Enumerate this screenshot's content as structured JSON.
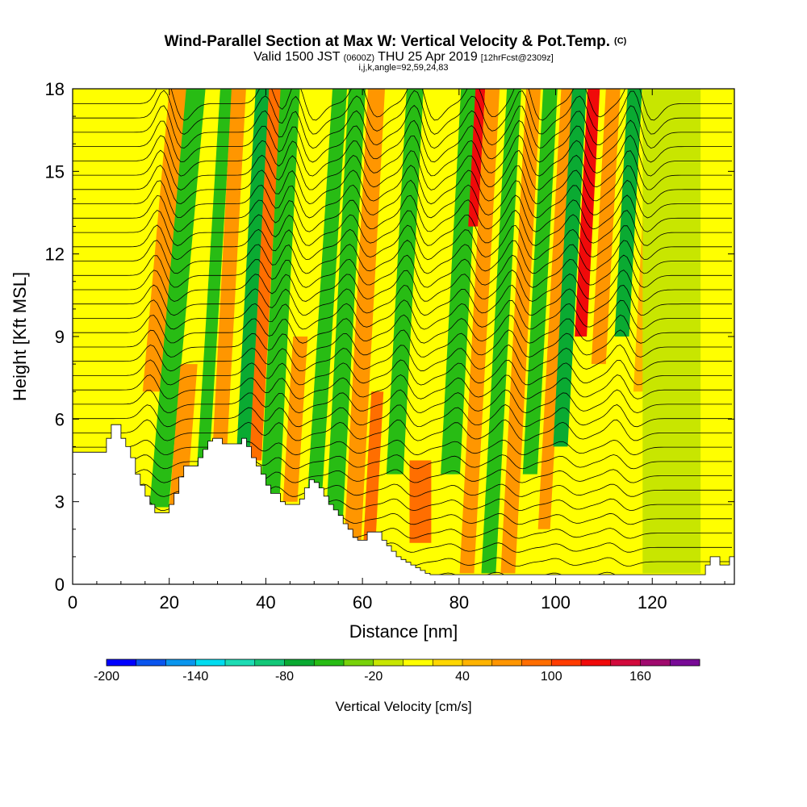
{
  "title": {
    "main": "Wind-Parallel Section at Max W: Vertical Velocity & Pot.Temp.",
    "main_tag": "(C)",
    "valid_pre": "Valid 1500 JST",
    "valid_z": "(0600Z)",
    "valid_post": "THU 25 Apr 2019",
    "forecast_tag": "[12hrFcst@2309z]",
    "params": "i,j,k,angle=92,59,24,83"
  },
  "colors": {
    "terrain": "#ffffff",
    "plot_bg": "#ffff00",
    "contour": "#000000"
  },
  "chart_data": {
    "type": "heatmap",
    "xlabel": "Distance [nm]",
    "ylabel": "Height [Kft MSL]",
    "xlim": [
      0,
      137
    ],
    "ylim": [
      0,
      18
    ],
    "x_ticks": [
      0,
      20,
      40,
      60,
      80,
      100,
      120
    ],
    "y_ticks": [
      0,
      3,
      6,
      9,
      12,
      15,
      18
    ],
    "colorbar": {
      "label": "Vertical Velocity [cm/s]",
      "min": -200,
      "max": 200,
      "step": 20,
      "tick_labels": [
        -200,
        -140,
        -80,
        -20,
        40,
        100,
        160
      ],
      "colors": [
        "#0000ff",
        "#0a55ee",
        "#0a96ee",
        "#00dcf0",
        "#1ddcb4",
        "#13c878",
        "#0aaa32",
        "#28bc14",
        "#78d20a",
        "#c8e600",
        "#ffff00",
        "#ffd700",
        "#ffb400",
        "#ff9600",
        "#ff6e00",
        "#ff3c00",
        "#f00a0a",
        "#d20a3c",
        "#a00a6e",
        "#780a96"
      ]
    },
    "terrain_profile": {
      "x_nm": [
        0,
        6,
        7,
        8,
        9,
        10,
        11,
        12,
        13,
        14,
        15,
        16,
        17,
        18,
        19,
        20,
        21,
        22,
        23,
        24,
        25,
        26,
        27,
        28,
        29,
        30,
        31,
        32,
        33,
        34,
        35,
        36,
        37,
        38,
        39,
        40,
        41,
        42,
        43,
        44,
        45,
        46,
        47,
        48,
        49,
        50,
        51,
        52,
        53,
        54,
        55,
        56,
        57,
        58,
        59,
        60,
        61,
        62,
        63,
        64,
        65,
        66,
        67,
        68,
        69,
        70,
        71,
        72,
        73,
        74,
        75,
        76,
        77,
        78,
        79,
        80,
        81,
        82,
        83,
        84,
        85,
        86,
        87,
        88,
        89,
        90,
        91,
        92,
        93,
        94,
        95,
        96,
        97,
        98,
        99,
        100,
        101,
        102,
        103,
        104,
        105,
        106,
        107,
        108,
        109,
        110,
        111,
        112,
        113,
        114,
        115,
        116,
        117,
        118,
        119,
        120,
        121,
        122,
        123,
        124,
        125,
        126,
        127,
        128,
        129,
        130,
        131,
        132,
        133,
        134,
        135,
        136,
        137
      ],
      "height_kft": [
        4.8,
        4.8,
        5.3,
        5.8,
        5.8,
        5.3,
        5.0,
        4.6,
        4.0,
        3.6,
        3.2,
        2.9,
        2.6,
        2.6,
        2.6,
        2.9,
        3.3,
        3.9,
        4.3,
        4.3,
        4.3,
        4.6,
        4.9,
        5.2,
        5.3,
        5.3,
        5.1,
        5.1,
        5.1,
        5.1,
        5.3,
        5.0,
        4.6,
        4.3,
        4.0,
        3.6,
        3.3,
        3.3,
        3.0,
        2.9,
        2.9,
        2.9,
        3.1,
        3.5,
        3.8,
        3.7,
        3.5,
        3.2,
        2.9,
        2.7,
        2.5,
        2.2,
        2.0,
        1.7,
        1.6,
        1.6,
        1.9,
        1.9,
        1.9,
        1.6,
        1.4,
        1.2,
        1.0,
        0.9,
        0.8,
        0.7,
        0.6,
        0.5,
        0.4,
        0.35,
        0.35,
        0.35,
        0.35,
        0.35,
        0.35,
        0.35,
        0.35,
        0.35,
        0.35,
        0.35,
        0.35,
        0.35,
        0.35,
        0.35,
        0.35,
        0.35,
        0.35,
        0.35,
        0.35,
        0.35,
        0.35,
        0.35,
        0.35,
        0.35,
        0.35,
        0.35,
        0.35,
        0.35,
        0.35,
        0.35,
        0.35,
        0.35,
        0.35,
        0.35,
        0.35,
        0.35,
        0.35,
        0.35,
        0.35,
        0.35,
        0.35,
        0.35,
        0.35,
        0.35,
        0.35,
        0.35,
        0.35,
        0.35,
        0.35,
        0.35,
        0.35,
        0.35,
        0.35,
        0.35,
        0.35,
        0.35,
        0.7,
        1.0,
        1.0,
        0.7,
        0.7,
        1.0,
        1.0,
        0.7,
        0.35,
        0.35,
        0.35
      ]
    },
    "velocity_bands": [
      {
        "x_nm": 13.5,
        "slope": 0.55,
        "value_cm_s": 120,
        "width_nm": 2.8,
        "h_from": 8.5,
        "h_to": 18
      },
      {
        "x_nm": 13.5,
        "slope": 0.5,
        "value_cm_s": 60,
        "width_nm": 5.0,
        "h_from": 7,
        "h_to": 18
      },
      {
        "x_nm": 16.5,
        "slope": 0.5,
        "value_cm_s": -130,
        "width_nm": 1.8,
        "h_from": 2.8,
        "h_to": 18
      },
      {
        "x_nm": 16.5,
        "slope": 0.5,
        "value_cm_s": -60,
        "width_nm": 4.0,
        "h_from": 2.8,
        "h_to": 18
      },
      {
        "x_nm": 20.5,
        "slope": 0.45,
        "value_cm_s": 60,
        "width_nm": 3.5,
        "h_from": 2.6,
        "h_to": 8
      },
      {
        "x_nm": 25.5,
        "slope": 0.35,
        "value_cm_s": -60,
        "width_nm": 2.5,
        "h_from": 4.3,
        "h_to": 18
      },
      {
        "x_nm": 29.0,
        "slope": 0.3,
        "value_cm_s": 60,
        "width_nm": 3.0,
        "h_from": 5,
        "h_to": 18
      },
      {
        "x_nm": 34.0,
        "slope": 0.3,
        "value_cm_s": -70,
        "width_nm": 3.0,
        "h_from": 5,
        "h_to": 18
      },
      {
        "x_nm": 36.5,
        "slope": 0.3,
        "value_cm_s": 80,
        "width_nm": 2.5,
        "h_from": 4.5,
        "h_to": 18
      },
      {
        "x_nm": 40.0,
        "slope": 0.28,
        "value_cm_s": -120,
        "width_nm": 1.8,
        "h_from": 3.2,
        "h_to": 18
      },
      {
        "x_nm": 40.0,
        "slope": 0.28,
        "value_cm_s": -60,
        "width_nm": 4.0,
        "h_from": 3.2,
        "h_to": 18
      },
      {
        "x_nm": 44.0,
        "slope": 0.35,
        "value_cm_s": 60,
        "width_nm": 3.0,
        "h_from": 3,
        "h_to": 9
      },
      {
        "x_nm": 49.0,
        "slope": 0.35,
        "value_cm_s": -60,
        "width_nm": 3.0,
        "h_from": 3.5,
        "h_to": 18
      },
      {
        "x_nm": 53.5,
        "slope": 0.3,
        "value_cm_s": -110,
        "width_nm": 1.8,
        "h_from": 2.2,
        "h_to": 9
      },
      {
        "x_nm": 53.5,
        "slope": 0.3,
        "value_cm_s": -50,
        "width_nm": 3.5,
        "h_from": 2.2,
        "h_to": 18
      },
      {
        "x_nm": 57.5,
        "slope": 0.3,
        "value_cm_s": 60,
        "width_nm": 3.5,
        "h_from": 1.6,
        "h_to": 18
      },
      {
        "x_nm": 61.0,
        "slope": 0.3,
        "value_cm_s": 90,
        "width_nm": 2.5,
        "h_from": 1.6,
        "h_to": 7
      },
      {
        "x_nm": 65.5,
        "slope": 0.3,
        "value_cm_s": -60,
        "width_nm": 3.5,
        "h_from": 4,
        "h_to": 18
      },
      {
        "x_nm": 72.0,
        "slope": 0.0,
        "value_cm_s": 90,
        "width_nm": 4.5,
        "h_from": 1.5,
        "h_to": 4.5
      },
      {
        "x_nm": 77.0,
        "slope": 0.3,
        "value_cm_s": -110,
        "width_nm": 1.8,
        "h_from": 4,
        "h_to": 8.5
      },
      {
        "x_nm": 77.0,
        "slope": 0.3,
        "value_cm_s": -55,
        "width_nm": 4.0,
        "h_from": 4,
        "h_to": 18
      },
      {
        "x_nm": 79.0,
        "slope": 0.3,
        "value_cm_s": 120,
        "width_nm": 2.0,
        "h_from": 13,
        "h_to": 18
      },
      {
        "x_nm": 81.5,
        "slope": 0.3,
        "value_cm_s": 70,
        "width_nm": 3.0,
        "h_from": 0.4,
        "h_to": 18
      },
      {
        "x_nm": 86.0,
        "slope": 0.3,
        "value_cm_s": -50,
        "width_nm": 3.0,
        "h_from": 0.4,
        "h_to": 18
      },
      {
        "x_nm": 90.0,
        "slope": 0.3,
        "value_cm_s": 60,
        "width_nm": 3.0,
        "h_from": 0.4,
        "h_to": 18
      },
      {
        "x_nm": 93.5,
        "slope": 0.3,
        "value_cm_s": -50,
        "width_nm": 3.0,
        "h_from": 4,
        "h_to": 18
      },
      {
        "x_nm": 97.0,
        "slope": 0.3,
        "value_cm_s": 70,
        "width_nm": 2.5,
        "h_from": 2,
        "h_to": 18
      },
      {
        "x_nm": 99.5,
        "slope": 0.3,
        "value_cm_s": -70,
        "width_nm": 3.0,
        "h_from": 5,
        "h_to": 18
      },
      {
        "x_nm": 102.5,
        "slope": 0.3,
        "value_cm_s": 120,
        "width_nm": 2.5,
        "h_from": 9,
        "h_to": 18
      },
      {
        "x_nm": 106.5,
        "slope": 0.3,
        "value_cm_s": 60,
        "width_nm": 3.0,
        "h_from": 8,
        "h_to": 18
      },
      {
        "x_nm": 111.0,
        "slope": 0.3,
        "value_cm_s": -70,
        "width_nm": 3.0,
        "h_from": 9,
        "h_to": 18
      },
      {
        "x_nm": 115.5,
        "slope": 0.3,
        "value_cm_s": 40,
        "width_nm": 3.0,
        "h_from": 7,
        "h_to": 18
      },
      {
        "x_nm": 124.0,
        "slope": 0.0,
        "value_cm_s": -20,
        "width_nm": 12.0,
        "h_from": 0.4,
        "h_to": 18
      }
    ]
  }
}
